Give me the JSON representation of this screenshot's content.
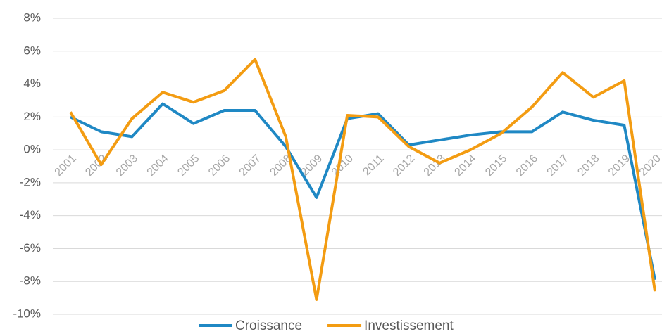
{
  "chart_data": {
    "type": "line",
    "categories": [
      "2001",
      "2002",
      "2003",
      "2004",
      "2005",
      "2006",
      "2007",
      "2008",
      "2009",
      "2010",
      "2011",
      "2012",
      "2013",
      "2014",
      "2015",
      "2016",
      "2017",
      "2018",
      "2019",
      "2020"
    ],
    "series": [
      {
        "name": "Croissance",
        "color": "#1f88c4",
        "values": [
          2.0,
          1.1,
          0.8,
          2.8,
          1.6,
          2.4,
          2.4,
          0.2,
          -2.9,
          1.9,
          2.2,
          0.3,
          0.6,
          0.9,
          1.1,
          1.1,
          2.3,
          1.8,
          1.5,
          -7.9
        ]
      },
      {
        "name": "Investissement",
        "color": "#f39c12",
        "values": [
          2.3,
          -0.9,
          1.9,
          3.5,
          2.9,
          3.6,
          5.5,
          0.8,
          -9.1,
          2.1,
          2.0,
          0.2,
          -0.8,
          0.0,
          1.0,
          2.6,
          4.7,
          3.2,
          4.2,
          -8.6
        ]
      }
    ],
    "ylim": [
      -10,
      8
    ],
    "yticks": [
      {
        "value": -10,
        "label": "-10%"
      },
      {
        "value": -8,
        "label": "-8%"
      },
      {
        "value": -6,
        "label": "-6%"
      },
      {
        "value": -4,
        "label": "-4%"
      },
      {
        "value": -2,
        "label": "-2%"
      },
      {
        "value": 0,
        "label": "0%"
      },
      {
        "value": 2,
        "label": "2%"
      },
      {
        "value": 4,
        "label": "4%"
      },
      {
        "value": 6,
        "label": "6%"
      },
      {
        "value": 8,
        "label": "8%"
      }
    ],
    "grid": true,
    "legend": "bottom"
  }
}
